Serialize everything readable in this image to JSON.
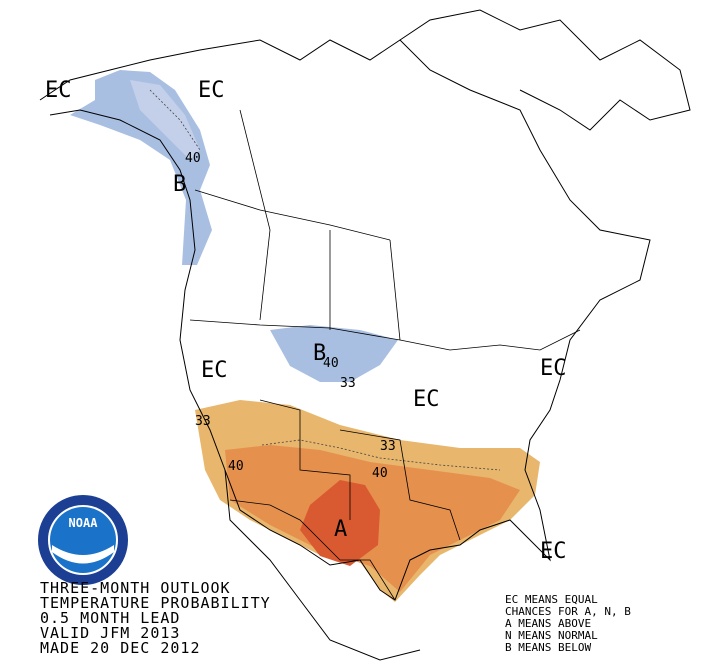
{
  "map": {
    "region_labels": [
      "EC",
      "EC",
      "B",
      "B",
      "EC",
      "EC",
      "EC",
      "A",
      "EC"
    ],
    "contour_labels": [
      "40",
      "40",
      "33",
      "33",
      "33",
      "40",
      "40"
    ],
    "logo": "NOAA",
    "title_lines": [
      "THREE-MONTH OUTLOOK",
      "TEMPERATURE PROBABILITY",
      "0.5 MONTH LEAD",
      "VALID JFM 2013",
      "MADE 20 DEC 2012"
    ],
    "legend_lines": [
      "EC MEANS EQUAL",
      "CHANCES FOR A, N, B",
      "A MEANS ABOVE",
      "N MEANS NORMAL",
      "B MEANS BELOW"
    ]
  }
}
